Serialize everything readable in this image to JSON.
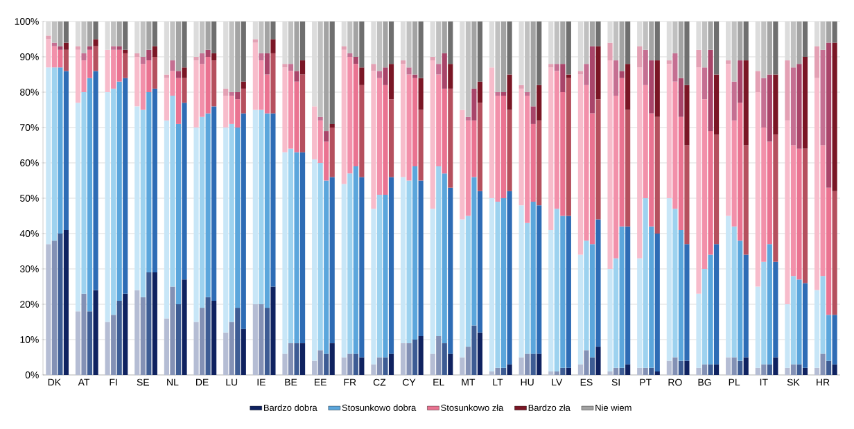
{
  "chart_data": {
    "type": "bar",
    "stacked": true,
    "grid": "y",
    "legend": "bottom",
    "categories": [
      null,
      "DK",
      null,
      null,
      null,
      "AT",
      null,
      null,
      null,
      "FI",
      null,
      null,
      null,
      "SE",
      null,
      null,
      null,
      "NL",
      null,
      null,
      null,
      "DE",
      null,
      null,
      null,
      "LU",
      null,
      null,
      null,
      "IE",
      null,
      null,
      null,
      "BE",
      null,
      null,
      null,
      "EE",
      null,
      null,
      null,
      "FR",
      null,
      null,
      null,
      "CZ",
      null,
      null,
      null,
      "CY",
      null,
      null,
      null,
      "EL",
      null,
      null,
      null,
      "MT",
      null,
      null,
      null,
      "LT",
      null,
      null,
      null,
      "HU",
      null,
      null,
      null,
      "LV",
      null,
      null,
      null,
      "ES",
      null,
      null,
      null,
      "SI",
      null,
      null,
      null,
      "PT",
      null,
      null,
      null,
      "RO",
      null,
      null,
      null,
      "BG",
      null,
      null,
      null,
      "PL",
      null,
      null,
      null,
      "IT",
      null,
      null,
      null,
      "SK",
      null,
      null,
      null,
      "HR",
      null,
      null
    ],
    "ylim": [
      0,
      100
    ],
    "yticks": [
      {
        "value": 0,
        "label": "0%"
      },
      {
        "value": 10,
        "label": "10%"
      },
      {
        "value": 20,
        "label": "20%"
      },
      {
        "value": 30,
        "label": "30%"
      },
      {
        "value": 40,
        "label": "40%"
      },
      {
        "value": 50,
        "label": "50%"
      },
      {
        "value": 60,
        "label": "60%"
      },
      {
        "value": 70,
        "label": "70%"
      },
      {
        "value": 80,
        "label": "80%"
      },
      {
        "value": 90,
        "label": "90%"
      },
      {
        "value": 100,
        "label": "100%"
      }
    ],
    "series": [
      {
        "name": "Bardzo dobra",
        "color": "#0f2260",
        "values": [
          37,
          38,
          40,
          41,
          18,
          23,
          18,
          24,
          15,
          17,
          21,
          23,
          24,
          22,
          29,
          29,
          16,
          25,
          20,
          27,
          15,
          19,
          22,
          21,
          12,
          15,
          19,
          13,
          20,
          20,
          19,
          25,
          6,
          9,
          9,
          9,
          4,
          7,
          6,
          9,
          5,
          6,
          6,
          5,
          3,
          5,
          5,
          6,
          9,
          9,
          10,
          11,
          6,
          11,
          9,
          6,
          5,
          8,
          14,
          12,
          1,
          2,
          2,
          3,
          5,
          6,
          6,
          6,
          1,
          1,
          2,
          2,
          3,
          7,
          5,
          8,
          1,
          2,
          2,
          3,
          2,
          2,
          2,
          1,
          4,
          5,
          4,
          4,
          2,
          3,
          3,
          3,
          5,
          5,
          4,
          5,
          2,
          3,
          3,
          5,
          2,
          3,
          3,
          2,
          2,
          6,
          4,
          3
        ],
        "colors": [
          "#b5bdd4",
          "#8391b5",
          "#3d5c94",
          "#0f2260",
          "#b5bdd4",
          "#8391b5",
          "#3d5c94",
          "#0f2260",
          "#b5bdd4",
          "#8391b5",
          "#3d5c94",
          "#0f2260",
          "#b5bdd4",
          "#8391b5",
          "#3d5c94",
          "#0f2260",
          "#b5bdd4",
          "#8391b5",
          "#3d5c94",
          "#0f2260",
          "#b5bdd4",
          "#8391b5",
          "#3d5c94",
          "#0f2260",
          "#b5bdd4",
          "#8391b5",
          "#3d5c94",
          "#0f2260",
          "#b5bdd4",
          "#8391b5",
          "#3d5c94",
          "#0f2260",
          "#b5bdd4",
          "#8391b5",
          "#3d5c94",
          "#0f2260",
          "#b5bdd4",
          "#8391b5",
          "#3d5c94",
          "#0f2260",
          "#b5bdd4",
          "#8391b5",
          "#3d5c94",
          "#0f2260",
          "#b5bdd4",
          "#8391b5",
          "#3d5c94",
          "#0f2260",
          "#b5bdd4",
          "#8391b5",
          "#3d5c94",
          "#0f2260",
          "#b5bdd4",
          "#8391b5",
          "#3d5c94",
          "#0f2260",
          "#b5bdd4",
          "#8391b5",
          "#3d5c94",
          "#0f2260",
          "#b5bdd4",
          "#8391b5",
          "#3d5c94",
          "#0f2260",
          "#b5bdd4",
          "#8391b5",
          "#3d5c94",
          "#0f2260",
          "#b5bdd4",
          "#8391b5",
          "#3d5c94",
          "#0f2260",
          "#b5bdd4",
          "#8391b5",
          "#3d5c94",
          "#0f2260",
          "#b5bdd4",
          "#8391b5",
          "#3d5c94",
          "#0f2260",
          "#b5bdd4",
          "#8391b5",
          "#3d5c94",
          "#0f2260",
          "#b5bdd4",
          "#8391b5",
          "#3d5c94",
          "#0f2260",
          "#b5bdd4",
          "#8391b5",
          "#3d5c94",
          "#0f2260",
          "#b5bdd4",
          "#8391b5",
          "#3d5c94",
          "#0f2260",
          "#b5bdd4",
          "#8391b5",
          "#3d5c94",
          "#0f2260",
          "#b5bdd4",
          "#8391b5",
          "#3d5c94",
          "#0f2260",
          "#b5bdd4",
          "#8391b5",
          "#3d5c94",
          "#0f2260"
        ]
      },
      {
        "name": "Stosunkowo dobra",
        "color": "#5ba6dc",
        "values": [
          50,
          49,
          47,
          45,
          59,
          57,
          66,
          62,
          65,
          64,
          62,
          61,
          52,
          53,
          51,
          52,
          56,
          54,
          51,
          50,
          55,
          54,
          52,
          55,
          58,
          56,
          51,
          61,
          55,
          55,
          55,
          49,
          57,
          55,
          54,
          54,
          57,
          53,
          49,
          47,
          49,
          51,
          53,
          51,
          44,
          46,
          46,
          50,
          47,
          46,
          49,
          44,
          41,
          48,
          48,
          47,
          39,
          37,
          42,
          40,
          49,
          47,
          48,
          49,
          43,
          37,
          43,
          42,
          40,
          46,
          43,
          43,
          31,
          31,
          32,
          36,
          29,
          31,
          40,
          39,
          31,
          48,
          40,
          39,
          46,
          42,
          37,
          33,
          21,
          27,
          31,
          34,
          40,
          37,
          34,
          29,
          23,
          29,
          34,
          27,
          18,
          25,
          24,
          24,
          22,
          22,
          13,
          14
        ],
        "colors": [
          "#c8e6f7",
          "#9dd2ef",
          "#5ba6dc",
          "#2e6cb5",
          "#c8e6f7",
          "#9dd2ef",
          "#5ba6dc",
          "#2e6cb5",
          "#c8e6f7",
          "#9dd2ef",
          "#5ba6dc",
          "#2e6cb5",
          "#c8e6f7",
          "#9dd2ef",
          "#5ba6dc",
          "#2e6cb5",
          "#c8e6f7",
          "#9dd2ef",
          "#5ba6dc",
          "#2e6cb5",
          "#c8e6f7",
          "#9dd2ef",
          "#5ba6dc",
          "#2e6cb5",
          "#c8e6f7",
          "#9dd2ef",
          "#5ba6dc",
          "#2e6cb5",
          "#c8e6f7",
          "#9dd2ef",
          "#5ba6dc",
          "#2e6cb5",
          "#c8e6f7",
          "#9dd2ef",
          "#5ba6dc",
          "#2e6cb5",
          "#c8e6f7",
          "#9dd2ef",
          "#5ba6dc",
          "#2e6cb5",
          "#c8e6f7",
          "#9dd2ef",
          "#5ba6dc",
          "#2e6cb5",
          "#c8e6f7",
          "#9dd2ef",
          "#5ba6dc",
          "#2e6cb5",
          "#c8e6f7",
          "#9dd2ef",
          "#5ba6dc",
          "#2e6cb5",
          "#c8e6f7",
          "#9dd2ef",
          "#5ba6dc",
          "#2e6cb5",
          "#c8e6f7",
          "#9dd2ef",
          "#5ba6dc",
          "#2e6cb5",
          "#c8e6f7",
          "#9dd2ef",
          "#5ba6dc",
          "#2e6cb5",
          "#c8e6f7",
          "#9dd2ef",
          "#5ba6dc",
          "#2e6cb5",
          "#c8e6f7",
          "#9dd2ef",
          "#5ba6dc",
          "#2e6cb5",
          "#c8e6f7",
          "#9dd2ef",
          "#5ba6dc",
          "#2e6cb5",
          "#c8e6f7",
          "#9dd2ef",
          "#5ba6dc",
          "#2e6cb5",
          "#c8e6f7",
          "#9dd2ef",
          "#5ba6dc",
          "#2e6cb5",
          "#c8e6f7",
          "#9dd2ef",
          "#5ba6dc",
          "#2e6cb5",
          "#c8e6f7",
          "#9dd2ef",
          "#5ba6dc",
          "#2e6cb5",
          "#c8e6f7",
          "#9dd2ef",
          "#5ba6dc",
          "#2e6cb5",
          "#c8e6f7",
          "#9dd2ef",
          "#5ba6dc",
          "#2e6cb5",
          "#c8e6f7",
          "#9dd2ef",
          "#5ba6dc",
          "#2e6cb5",
          "#c8e6f7",
          "#9dd2ef",
          "#5ba6dc",
          "#2e6cb5"
        ]
      },
      {
        "name": "Stosunkowo zła",
        "color": "#ea7391",
        "values": [
          8,
          6,
          5,
          6,
          15,
          9,
          8,
          7,
          12,
          11,
          9,
          7,
          14,
          13,
          9,
          9,
          12,
          7,
          13,
          7,
          19,
          15,
          16,
          13,
          9,
          8,
          8,
          7,
          19,
          14,
          11,
          17,
          24,
          22,
          20,
          22,
          15,
          12,
          11,
          14,
          38,
          33,
          29,
          26,
          39,
          33,
          31,
          22,
          32,
          30,
          25,
          20,
          42,
          26,
          24,
          28,
          31,
          27,
          16,
          25,
          37,
          30,
          29,
          23,
          33,
          36,
          22,
          24,
          46,
          39,
          35,
          39,
          51,
          44,
          37,
          34,
          59,
          46,
          42,
          33,
          54,
          32,
          32,
          33,
          38,
          36,
          32,
          28,
          64,
          48,
          35,
          31,
          43,
          30,
          39,
          31,
          55,
          38,
          29,
          36,
          52,
          37,
          37,
          38,
          60,
          37,
          36,
          35
        ],
        "colors": [
          "#f7bccb",
          "#f290aa",
          "#ea7391",
          "#b5505e",
          "#f7bccb",
          "#f290aa",
          "#ea7391",
          "#b5505e",
          "#f7bccb",
          "#f290aa",
          "#ea7391",
          "#b5505e",
          "#f7bccb",
          "#f290aa",
          "#ea7391",
          "#b5505e",
          "#f7bccb",
          "#f290aa",
          "#ea7391",
          "#b5505e",
          "#f7bccb",
          "#f290aa",
          "#ea7391",
          "#b5505e",
          "#f7bccb",
          "#f290aa",
          "#ea7391",
          "#b5505e",
          "#f7bccb",
          "#f290aa",
          "#ea7391",
          "#b5505e",
          "#f7bccb",
          "#f290aa",
          "#ea7391",
          "#b5505e",
          "#f7bccb",
          "#f290aa",
          "#ea7391",
          "#b5505e",
          "#f7bccb",
          "#f290aa",
          "#ea7391",
          "#b5505e",
          "#f7bccb",
          "#f290aa",
          "#ea7391",
          "#b5505e",
          "#f7bccb",
          "#f290aa",
          "#ea7391",
          "#b5505e",
          "#f7bccb",
          "#f290aa",
          "#ea7391",
          "#b5505e",
          "#f7bccb",
          "#f290aa",
          "#ea7391",
          "#b5505e",
          "#f7bccb",
          "#f290aa",
          "#ea7391",
          "#b5505e",
          "#f7bccb",
          "#f290aa",
          "#ea7391",
          "#b5505e",
          "#f7bccb",
          "#f290aa",
          "#ea7391",
          "#b5505e",
          "#f7bccb",
          "#f290aa",
          "#ea7391",
          "#b5505e",
          "#f7bccb",
          "#f290aa",
          "#ea7391",
          "#b5505e",
          "#f7bccb",
          "#f290aa",
          "#ea7391",
          "#b5505e",
          "#f7bccb",
          "#f290aa",
          "#ea7391",
          "#b5505e",
          "#f7bccb",
          "#f290aa",
          "#ea7391",
          "#b5505e",
          "#f7bccb",
          "#f290aa",
          "#ea7391",
          "#b5505e",
          "#f7bccb",
          "#f290aa",
          "#ea7391",
          "#b5505e",
          "#f7bccb",
          "#f290aa",
          "#ea7391",
          "#b5505e",
          "#f7bccb",
          "#f290aa",
          "#ea7391",
          "#b5505e"
        ]
      },
      {
        "name": "Bardzo zła",
        "color": "#7a1625",
        "values": [
          1,
          1,
          1,
          2,
          1,
          2,
          1,
          2,
          0,
          1,
          1,
          1,
          1,
          2,
          3,
          3,
          1,
          3,
          2,
          3,
          1,
          3,
          2,
          2,
          2,
          1,
          2,
          2,
          1,
          2,
          6,
          4,
          1,
          2,
          3,
          4,
          0,
          1,
          3,
          1,
          1,
          1,
          2,
          5,
          2,
          2,
          5,
          10,
          1,
          2,
          1,
          9,
          1,
          3,
          10,
          7,
          0,
          1,
          9,
          6,
          0,
          1,
          1,
          10,
          1,
          1,
          5,
          10,
          1,
          2,
          8,
          1,
          1,
          6,
          19,
          15,
          5,
          10,
          2,
          13,
          6,
          10,
          15,
          16,
          1,
          8,
          11,
          17,
          5,
          9,
          23,
          17,
          1,
          11,
          12,
          24,
          6,
          14,
          19,
          17,
          17,
          22,
          24,
          26,
          9,
          27,
          41,
          42
        ],
        "colors": [
          "#e3a1b4",
          "#c56f92",
          "#a9456a",
          "#7a1625",
          "#e3a1b4",
          "#c56f92",
          "#a9456a",
          "#7a1625",
          "#e3a1b4",
          "#c56f92",
          "#a9456a",
          "#7a1625",
          "#e3a1b4",
          "#c56f92",
          "#a9456a",
          "#7a1625",
          "#e3a1b4",
          "#c56f92",
          "#a9456a",
          "#7a1625",
          "#e3a1b4",
          "#c56f92",
          "#a9456a",
          "#7a1625",
          "#e3a1b4",
          "#c56f92",
          "#a9456a",
          "#7a1625",
          "#e3a1b4",
          "#c56f92",
          "#a9456a",
          "#7a1625",
          "#e3a1b4",
          "#c56f92",
          "#a9456a",
          "#7a1625",
          "#e3a1b4",
          "#c56f92",
          "#a9456a",
          "#7a1625",
          "#e3a1b4",
          "#c56f92",
          "#a9456a",
          "#7a1625",
          "#e3a1b4",
          "#c56f92",
          "#a9456a",
          "#7a1625",
          "#e3a1b4",
          "#c56f92",
          "#a9456a",
          "#7a1625",
          "#e3a1b4",
          "#c56f92",
          "#a9456a",
          "#7a1625",
          "#e3a1b4",
          "#c56f92",
          "#a9456a",
          "#7a1625",
          "#e3a1b4",
          "#c56f92",
          "#a9456a",
          "#7a1625",
          "#e3a1b4",
          "#c56f92",
          "#a9456a",
          "#7a1625",
          "#e3a1b4",
          "#c56f92",
          "#a9456a",
          "#7a1625",
          "#e3a1b4",
          "#c56f92",
          "#a9456a",
          "#7a1625",
          "#e3a1b4",
          "#c56f92",
          "#a9456a",
          "#7a1625",
          "#e3a1b4",
          "#c56f92",
          "#a9456a",
          "#7a1625",
          "#e3a1b4",
          "#c56f92",
          "#a9456a",
          "#7a1625",
          "#e3a1b4",
          "#c56f92",
          "#a9456a",
          "#7a1625",
          "#e3a1b4",
          "#c56f92",
          "#a9456a",
          "#7a1625",
          "#e3a1b4",
          "#c56f92",
          "#a9456a",
          "#7a1625",
          "#e3a1b4",
          "#c56f92",
          "#a9456a",
          "#7a1625",
          "#e3a1b4",
          "#c56f92",
          "#a9456a",
          "#7a1625"
        ]
      },
      {
        "name": "Nie wiem",
        "color": "#a3a3a3",
        "values": [
          4,
          6,
          7,
          6,
          7,
          9,
          7,
          5,
          8,
          7,
          7,
          8,
          9,
          10,
          8,
          7,
          15,
          11,
          14,
          13,
          10,
          9,
          8,
          9,
          19,
          20,
          20,
          17,
          5,
          9,
          9,
          5,
          12,
          12,
          14,
          11,
          24,
          27,
          31,
          29,
          7,
          9,
          10,
          13,
          12,
          14,
          13,
          12,
          11,
          13,
          15,
          16,
          10,
          12,
          9,
          12,
          25,
          27,
          19,
          17,
          13,
          20,
          20,
          15,
          18,
          20,
          24,
          18,
          12,
          12,
          12,
          15,
          14,
          12,
          7,
          7,
          6,
          11,
          14,
          12,
          7,
          8,
          11,
          11,
          11,
          9,
          16,
          18,
          8,
          13,
          8,
          15,
          11,
          17,
          11,
          11,
          14,
          16,
          15,
          15,
          11,
          13,
          12,
          10,
          7,
          8,
          6,
          6
        ],
        "colors": [
          "#dcdcdc",
          "#c0c0c0",
          "#a3a3a3",
          "#6f6f6f",
          "#dcdcdc",
          "#c0c0c0",
          "#a3a3a3",
          "#6f6f6f",
          "#dcdcdc",
          "#c0c0c0",
          "#a3a3a3",
          "#6f6f6f",
          "#dcdcdc",
          "#c0c0c0",
          "#a3a3a3",
          "#6f6f6f",
          "#dcdcdc",
          "#c0c0c0",
          "#a3a3a3",
          "#6f6f6f",
          "#dcdcdc",
          "#c0c0c0",
          "#a3a3a3",
          "#6f6f6f",
          "#dcdcdc",
          "#c0c0c0",
          "#a3a3a3",
          "#6f6f6f",
          "#dcdcdc",
          "#c0c0c0",
          "#a3a3a3",
          "#6f6f6f",
          "#dcdcdc",
          "#c0c0c0",
          "#a3a3a3",
          "#6f6f6f",
          "#dcdcdc",
          "#c0c0c0",
          "#a3a3a3",
          "#6f6f6f",
          "#dcdcdc",
          "#c0c0c0",
          "#a3a3a3",
          "#6f6f6f",
          "#dcdcdc",
          "#c0c0c0",
          "#a3a3a3",
          "#6f6f6f",
          "#dcdcdc",
          "#c0c0c0",
          "#a3a3a3",
          "#6f6f6f",
          "#dcdcdc",
          "#c0c0c0",
          "#a3a3a3",
          "#6f6f6f",
          "#dcdcdc",
          "#c0c0c0",
          "#a3a3a3",
          "#6f6f6f",
          "#dcdcdc",
          "#c0c0c0",
          "#a3a3a3",
          "#6f6f6f",
          "#dcdcdc",
          "#c0c0c0",
          "#a3a3a3",
          "#6f6f6f",
          "#dcdcdc",
          "#c0c0c0",
          "#a3a3a3",
          "#6f6f6f",
          "#dcdcdc",
          "#c0c0c0",
          "#a3a3a3",
          "#6f6f6f",
          "#dcdcdc",
          "#c0c0c0",
          "#a3a3a3",
          "#6f6f6f",
          "#dcdcdc",
          "#c0c0c0",
          "#a3a3a3",
          "#6f6f6f",
          "#dcdcdc",
          "#c0c0c0",
          "#a3a3a3",
          "#6f6f6f",
          "#dcdcdc",
          "#c0c0c0",
          "#a3a3a3",
          "#6f6f6f",
          "#dcdcdc",
          "#c0c0c0",
          "#a3a3a3",
          "#6f6f6f",
          "#dcdcdc",
          "#c0c0c0",
          "#a3a3a3",
          "#6f6f6f",
          "#dcdcdc",
          "#c0c0c0",
          "#a3a3a3",
          "#6f6f6f",
          "#dcdcdc",
          "#c0c0c0",
          "#a3a3a3",
          "#6f6f6f"
        ]
      }
    ]
  }
}
